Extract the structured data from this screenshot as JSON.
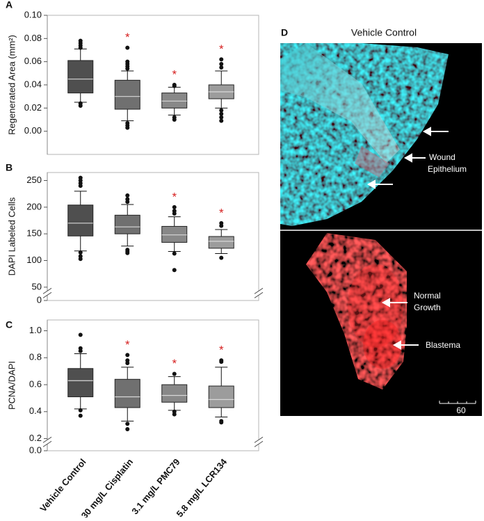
{
  "chart_data": [
    {
      "type": "box",
      "panel": "A",
      "ylabel": "Regenerated Area (mm²)",
      "ylim": [
        -0.02,
        0.1
      ],
      "yticks": [
        {
          "value": 0,
          "label": "0.00"
        },
        0.02,
        0.04,
        0.06,
        0.08,
        {
          "value": 0.1,
          "label": "0.10"
        }
      ],
      "boxes": [
        {
          "whislo": 0.025,
          "q1": 0.033,
          "med": 0.045,
          "q3": 0.061,
          "whishi": 0.071,
          "fliers": [
            0.078,
            0.076,
            0.074,
            0.072,
            0.024,
            0.022
          ],
          "color": "#4f4f4f"
        },
        {
          "whislo": 0.009,
          "q1": 0.019,
          "med": 0.03,
          "q3": 0.044,
          "whishi": 0.052,
          "fliers": [
            0.072,
            0.06,
            0.058,
            0.056,
            0.054,
            0.007,
            0.005,
            0.003
          ],
          "color": "#707070"
        },
        {
          "whislo": 0.014,
          "q1": 0.02,
          "med": 0.026,
          "q3": 0.033,
          "whishi": 0.038,
          "fliers": [
            0.04,
            0.039,
            0.012,
            0.01
          ],
          "color": "#888888"
        },
        {
          "whislo": 0.02,
          "q1": 0.028,
          "med": 0.034,
          "q3": 0.04,
          "whishi": 0.052,
          "fliers": [
            0.062,
            0.058,
            0.055,
            0.018,
            0.015,
            0.012,
            0.009
          ],
          "color": "#9c9c9c"
        }
      ],
      "significance": [
        null,
        "*",
        "*",
        "*"
      ],
      "significance_color": "#d62020"
    },
    {
      "type": "box",
      "panel": "B",
      "ylabel": "DAPI Labeled Cells",
      "ylim": [
        0,
        265
      ],
      "axis_break": [
        10,
        35
      ],
      "yticks": [
        0,
        50,
        100,
        150,
        200,
        250
      ],
      "boxes": [
        {
          "whislo": 118,
          "q1": 146,
          "med": 170,
          "q3": 204,
          "whishi": 230,
          "fliers": [
            255,
            250,
            245,
            240,
            115,
            108,
            103
          ],
          "color": "#4f4f4f"
        },
        {
          "whislo": 127,
          "q1": 150,
          "med": 163,
          "q3": 185,
          "whishi": 205,
          "fliers": [
            222,
            215,
            210,
            120,
            117,
            114
          ],
          "color": "#707070"
        },
        {
          "whislo": 117,
          "q1": 134,
          "med": 148,
          "q3": 164,
          "whishi": 182,
          "fliers": [
            200,
            193,
            188,
            113,
            82
          ],
          "color": "#888888"
        },
        {
          "whislo": 113,
          "q1": 123,
          "med": 136,
          "q3": 145,
          "whishi": 158,
          "fliers": [
            170,
            165,
            105
          ],
          "color": "#9c9c9c"
        }
      ],
      "significance": [
        null,
        null,
        "*",
        "*"
      ],
      "significance_color": "#d62020"
    },
    {
      "type": "box",
      "panel": "C",
      "ylabel": "PCNA/DAPI",
      "ylim": [
        0,
        1.08
      ],
      "axis_break": [
        0.05,
        0.16
      ],
      "yticks": [
        {
          "value": 0,
          "label": "0.0"
        },
        0.2,
        0.4,
        0.6,
        0.8,
        {
          "value": 1,
          "label": "1.0"
        }
      ],
      "categories": [
        "Vehicle Control",
        "30 mg/L Cisplatin",
        "3.1 mg/L PMC79",
        "5.8 mg/L LCR134"
      ],
      "boxes": [
        {
          "whislo": 0.42,
          "q1": 0.51,
          "med": 0.63,
          "q3": 0.72,
          "whishi": 0.83,
          "fliers": [
            0.97,
            0.87,
            0.85,
            0.41,
            0.37
          ],
          "color": "#4f4f4f"
        },
        {
          "whislo": 0.33,
          "q1": 0.43,
          "med": 0.51,
          "q3": 0.64,
          "whishi": 0.73,
          "fliers": [
            0.82,
            0.78,
            0.76,
            0.31,
            0.27
          ],
          "color": "#707070"
        },
        {
          "whislo": 0.41,
          "q1": 0.47,
          "med": 0.52,
          "q3": 0.6,
          "whishi": 0.66,
          "fliers": [
            0.68,
            0.4,
            0.38
          ],
          "color": "#888888"
        },
        {
          "whislo": 0.36,
          "q1": 0.43,
          "med": 0.49,
          "q3": 0.59,
          "whishi": 0.73,
          "fliers": [
            0.78,
            0.77,
            0.33,
            0.32
          ],
          "color": "#9c9c9c"
        }
      ],
      "significance": [
        null,
        "*",
        "*",
        "*"
      ],
      "significance_color": "#d62020"
    }
  ],
  "image_panel": {
    "label": "D",
    "title": "Vehicle Control",
    "annotations": [
      {
        "lines": [
          "Wound",
          "Epithelium"
        ]
      },
      {
        "lines": [
          "Normal",
          "Growth"
        ]
      },
      {
        "lines": [
          "Blastema"
        ]
      }
    ],
    "scale_bar": 60
  }
}
